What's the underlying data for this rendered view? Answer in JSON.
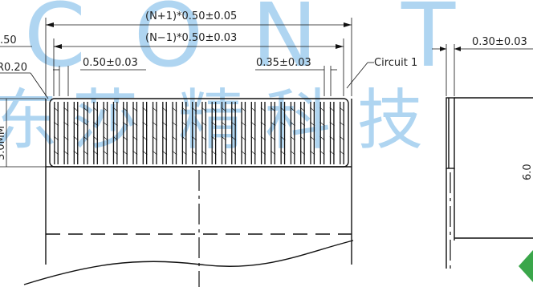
{
  "watermark": {
    "latin": "CON",
    "right_glyph": "T",
    "chinese": [
      "东",
      "莎",
      "精",
      "科",
      "技"
    ],
    "color": "#6fb3e6"
  },
  "dimensions": {
    "total_width": "(N+1)*0.50±0.05",
    "pitch_span": "(N−1)*0.50±0.03",
    "left_partial_a": ".50",
    "left_partial_b": "R0.20",
    "pitch": "0.50±0.03",
    "pin_width": "0.35±0.03",
    "circuit_label": "Circuit 1",
    "height_left": "3.0MM",
    "side_thickness": "0.30±0.03",
    "side_height": "6.0"
  },
  "drawing": {
    "pin_count": 30,
    "line_color": "#111111",
    "accent_green": "#3aa64a"
  }
}
